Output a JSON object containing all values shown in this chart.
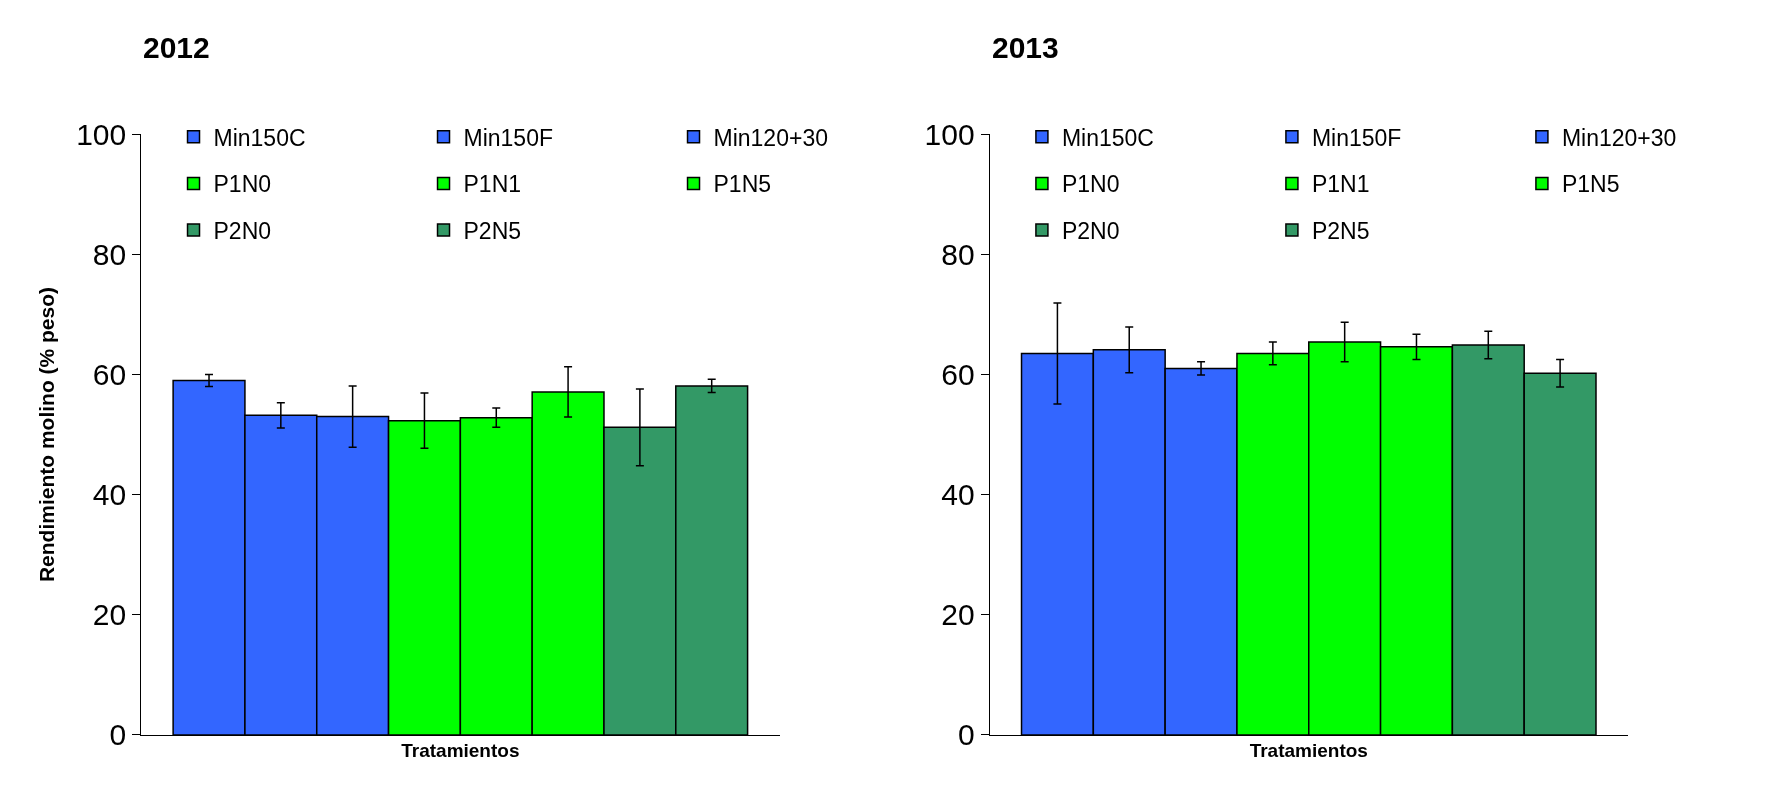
{
  "chart_data": [
    {
      "type": "bar",
      "title": "2012",
      "xlabel": "Tratamientos",
      "ylabel": "Rendimiento molino (% peso)",
      "categories": [
        null
      ],
      "ylim": [
        0,
        100
      ],
      "yticks": [
        0,
        20,
        40,
        60,
        80,
        100
      ],
      "legend": "top",
      "tick_labels": "y",
      "series": [
        {
          "name": "Min150C",
          "color": "#3366ff",
          "values": [
            59.0
          ],
          "errors": [
            1.0
          ]
        },
        {
          "name": "Min150F",
          "color": "#3366ff",
          "values": [
            53.2
          ],
          "errors": [
            2.1
          ]
        },
        {
          "name": "Min120+30",
          "color": "#3366ff",
          "values": [
            53.0
          ],
          "errors": [
            5.1
          ]
        },
        {
          "name": "P1N0",
          "color": "#00ff00",
          "values": [
            52.3
          ],
          "errors": [
            4.6
          ]
        },
        {
          "name": "P1N1",
          "color": "#00ff00",
          "values": [
            52.8
          ],
          "errors": [
            1.6
          ]
        },
        {
          "name": "P1N5",
          "color": "#00ff00",
          "values": [
            57.1
          ],
          "errors": [
            4.2
          ]
        },
        {
          "name": "P2N0",
          "color": "#339966",
          "values": [
            51.2
          ],
          "errors": [
            6.4
          ]
        },
        {
          "name": "P2N5",
          "color": "#339966",
          "values": [
            58.1
          ],
          "errors": [
            1.1
          ]
        }
      ]
    },
    {
      "type": "bar",
      "title": "2013",
      "xlabel": "Tratamientos",
      "categories": [
        null
      ],
      "ylim": [
        0,
        100
      ],
      "yticks": [
        0,
        20,
        40,
        60,
        80,
        100
      ],
      "legend": "top",
      "tick_labels": "y",
      "series": [
        {
          "name": "Min150C",
          "color": "#3366ff",
          "values": [
            63.5
          ],
          "errors": [
            8.4
          ]
        },
        {
          "name": "Min150F",
          "color": "#3366ff",
          "values": [
            64.1
          ],
          "errors": [
            3.8
          ]
        },
        {
          "name": "Min120+30",
          "color": "#3366ff",
          "values": [
            61.0
          ],
          "errors": [
            1.1
          ]
        },
        {
          "name": "P1N0",
          "color": "#00ff00",
          "values": [
            63.5
          ],
          "errors": [
            1.9
          ]
        },
        {
          "name": "P1N1",
          "color": "#00ff00",
          "values": [
            65.4
          ],
          "errors": [
            3.3
          ]
        },
        {
          "name": "P1N5",
          "color": "#00ff00",
          "values": [
            64.6
          ],
          "errors": [
            2.1
          ]
        },
        {
          "name": "P2N0",
          "color": "#339966",
          "values": [
            64.9
          ],
          "errors": [
            2.3
          ]
        },
        {
          "name": "P2N5",
          "color": "#339966",
          "values": [
            60.2
          ],
          "errors": [
            2.3
          ]
        }
      ]
    }
  ]
}
